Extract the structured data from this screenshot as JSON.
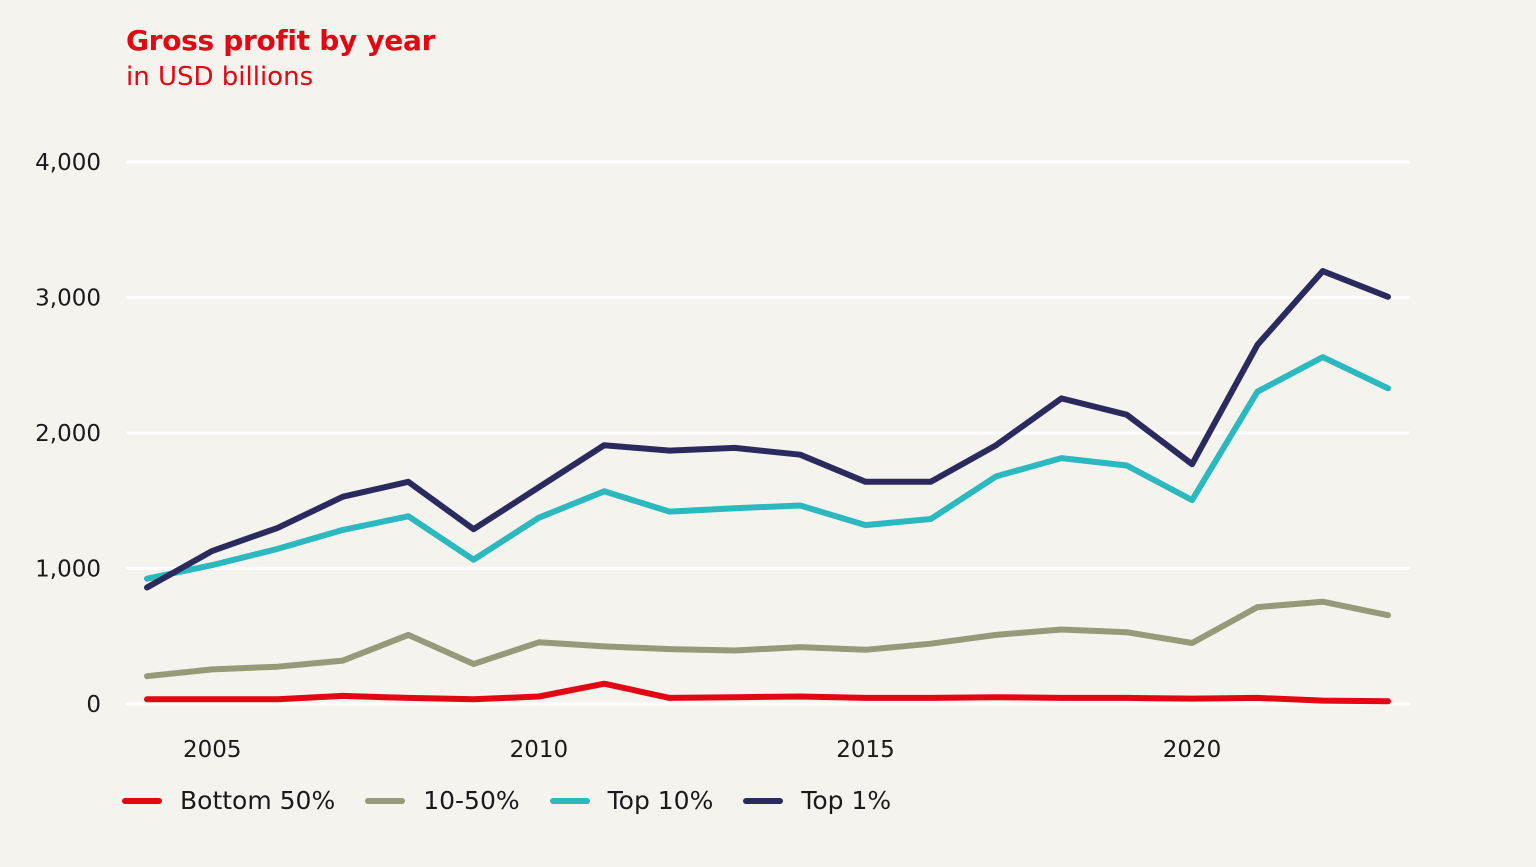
{
  "title": "Gross profit by year",
  "subtitle": "in USD billions",
  "colors": {
    "background": "#f4f3ee",
    "accent": "#e30613",
    "grid": "#ffffff"
  },
  "chart_data": {
    "type": "line",
    "title": "Gross profit by year",
    "subtitle": "in USD billions",
    "xlabel": "",
    "ylabel": "",
    "x": [
      2004,
      2005,
      2006,
      2007,
      2008,
      2009,
      2010,
      2011,
      2012,
      2013,
      2014,
      2015,
      2016,
      2017,
      2018,
      2019,
      2020,
      2021,
      2022,
      2023
    ],
    "xlim": [
      2003.0,
      2022.7
    ],
    "ylim": [
      0,
      4000
    ],
    "xticks": [
      2005,
      2010,
      2015,
      2020
    ],
    "xtick_labels": [
      "2005",
      "2010",
      "2015",
      "2020"
    ],
    "yticks": [
      0,
      1000,
      2000,
      3000,
      4000
    ],
    "ytick_labels": [
      "0",
      "1,000",
      "2,000",
      "3,000",
      "4,000"
    ],
    "grid": "horizontal",
    "legend_position": "bottom-left",
    "series": [
      {
        "name": "Bottom 50%",
        "color": "#e30613",
        "values": [
          35,
          35,
          35,
          60,
          45,
          35,
          55,
          150,
          45,
          50,
          55,
          45,
          45,
          50,
          45,
          45,
          40,
          45,
          25,
          20
        ]
      },
      {
        "name": "10-50%",
        "color": "#959a78",
        "values": [
          205,
          255,
          275,
          320,
          510,
          295,
          455,
          425,
          405,
          395,
          420,
          400,
          445,
          510,
          550,
          530,
          450,
          715,
          755,
          655
        ]
      },
      {
        "name": "Top 10%",
        "color": "#2bb8bf",
        "values": [
          925,
          1025,
          1145,
          1285,
          1385,
          1065,
          1375,
          1570,
          1420,
          1445,
          1465,
          1320,
          1365,
          1680,
          1815,
          1760,
          1505,
          2305,
          2560,
          2330
        ]
      },
      {
        "name": "Top 1%",
        "color": "#2b2a5e",
        "values": [
          860,
          1130,
          1300,
          1530,
          1640,
          1290,
          1600,
          1910,
          1870,
          1890,
          1840,
          1640,
          1640,
          1910,
          2255,
          2135,
          1770,
          2650,
          3195,
          3005
        ]
      }
    ]
  }
}
